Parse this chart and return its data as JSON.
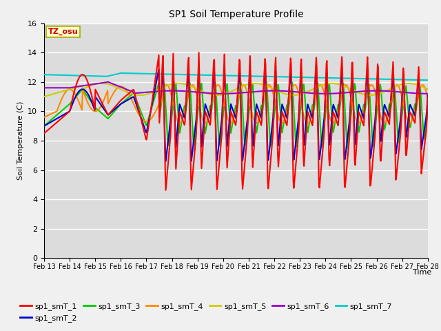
{
  "title": "SP1 Soil Temperature Profile",
  "xlabel": "Time",
  "ylabel": "Soil Temperature (C)",
  "ylim": [
    0,
    16
  ],
  "yticks": [
    0,
    2,
    4,
    6,
    8,
    10,
    12,
    14,
    16
  ],
  "bg_color": "#dcdcdc",
  "annotation_text": "TZ_osu",
  "annotation_color": "#cc0000",
  "annotation_bg": "#ffffcc",
  "annotation_border": "#aaaa00",
  "series_colors": {
    "sp1_smT_1": "#ff0000",
    "sp1_smT_2": "#0000cc",
    "sp1_smT_3": "#00cc00",
    "sp1_smT_4": "#ff8800",
    "sp1_smT_5": "#cccc00",
    "sp1_smT_6": "#9900cc",
    "sp1_smT_7": "#00cccc"
  },
  "x_tick_labels": [
    "Feb 13",
    "Feb 14",
    "Feb 15",
    "Feb 16",
    "Feb 17",
    "Feb 18",
    "Feb 19",
    "Feb 20",
    "Feb 21",
    "Feb 22",
    "Feb 23",
    "Feb 24",
    "Feb 25",
    "Feb 26",
    "Feb 27",
    "Feb 28"
  ]
}
